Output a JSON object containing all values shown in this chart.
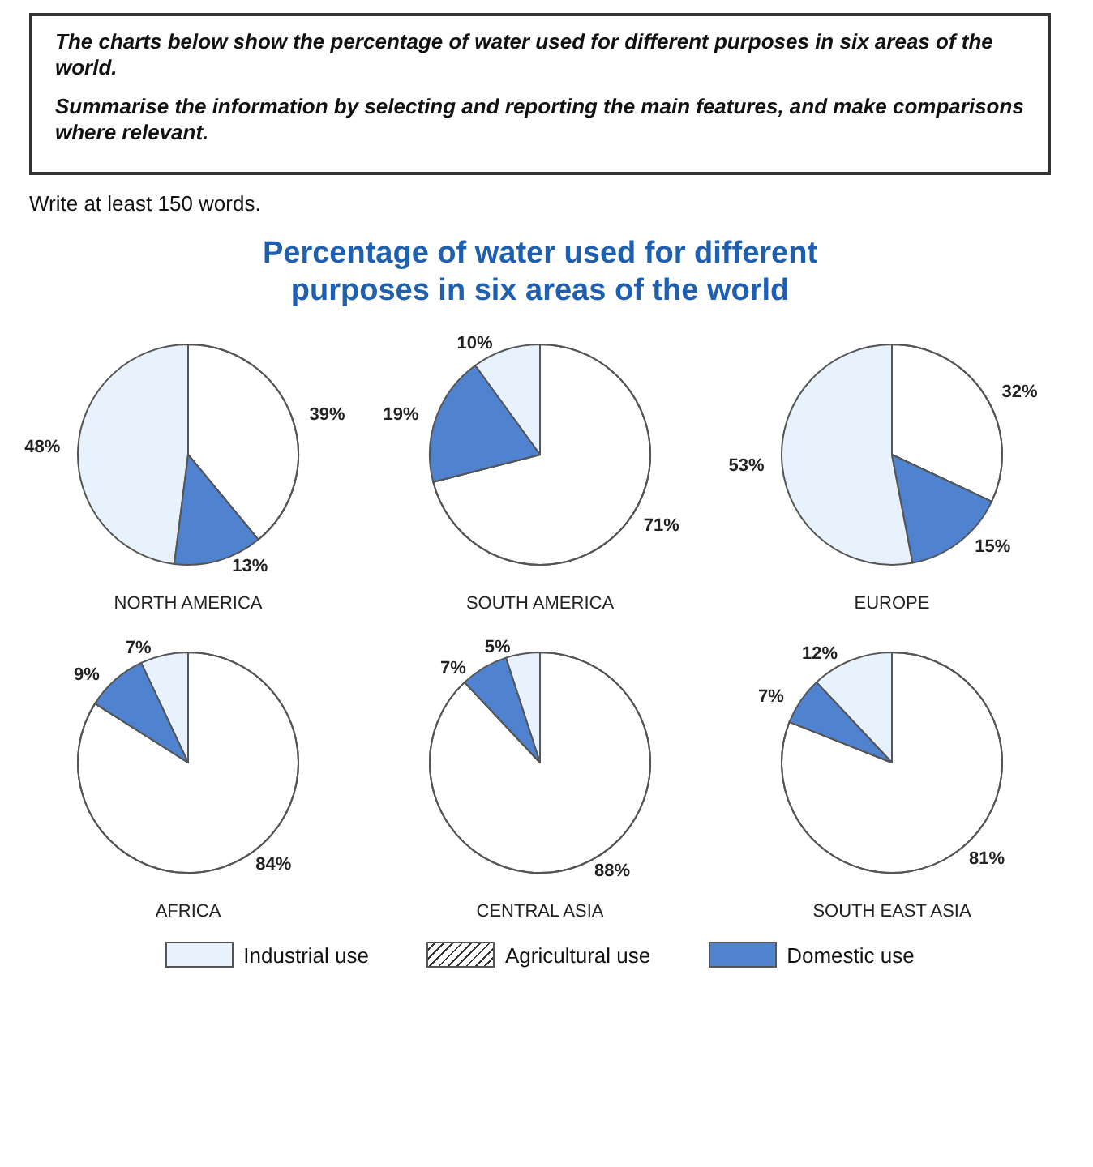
{
  "chart_data": [
    {
      "type": "pie",
      "annotations": [
        "The charts below show the percentage of water used for different purposes in six areas of the world.",
        "Summarise the information by selecting and reporting the main features, and make comparisons where relevant.",
        "Write at least 150 words."
      ],
      "xlabel": "NORTH AMERICA",
      "categories": [
        null,
        null,
        null
      ],
      "values": [
        48,
        39,
        13
      ],
      "value_labels": [
        "48%",
        "39%",
        "13%"
      ],
      "colors": [
        "#e8f2fc",
        "#ffffff",
        "#4f82cf"
      ]
    },
    {
      "type": "pie",
      "title": "Percentage of water used for different purposes in six areas of the world",
      "xlabel": "SOUTH AMERICA",
      "categories": [
        null,
        null,
        null
      ],
      "values": [
        10,
        71,
        19
      ],
      "value_labels": [
        "10%",
        "71%",
        "19%"
      ],
      "colors": [
        "#e8f2fc",
        "#ffffff",
        "#4f82cf"
      ]
    },
    {
      "type": "pie",
      "xlabel": "EUROPE",
      "categories": [
        null,
        null,
        null
      ],
      "values": [
        53,
        32,
        15
      ],
      "value_labels": [
        "53%",
        "32%",
        "15%"
      ],
      "colors": [
        "#e8f2fc",
        "#ffffff",
        "#4f82cf"
      ]
    },
    {
      "type": "pie",
      "xlabel": "AFRICA",
      "categories": [
        null,
        null,
        null
      ],
      "values": [
        7,
        84,
        9
      ],
      "value_labels": [
        "7%",
        "84%",
        "9%"
      ],
      "colors": [
        "#e8f2fc",
        "#ffffff",
        "#4f82cf"
      ]
    },
    {
      "type": "pie",
      "xlabel": "CENTRAL ASIA",
      "categories": [
        "Industrial use",
        "Agricultural use",
        "Domestic use"
      ],
      "values": [
        5,
        88,
        7
      ],
      "value_labels": [
        "5%",
        "88%",
        "7%"
      ],
      "colors": [
        "#e8f2fc",
        "#ffffff",
        "#4f82cf"
      ],
      "legend": "bottom"
    },
    {
      "type": "pie",
      "xlabel": "SOUTH EAST ASIA",
      "categories": [
        null,
        null,
        null
      ],
      "values": [
        12,
        81,
        7
      ],
      "value_labels": [
        "12%",
        "81%",
        "7%"
      ],
      "colors": [
        "#e8f2fc",
        "#ffffff",
        "#4f82cf"
      ]
    }
  ]
}
